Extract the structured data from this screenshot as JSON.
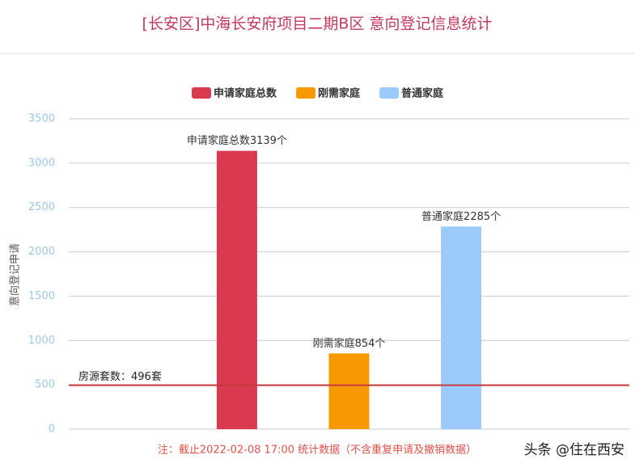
{
  "chart_data": {
    "type": "bar",
    "title": "[长安区]中海长安府项目二期B区 意向登记信息统计",
    "y_label": "意向登记申请",
    "categories": [
      null
    ],
    "series": [
      {
        "name": "申请家庭总数",
        "color": "#d93a50",
        "values": [
          3139
        ],
        "value_labels": [
          "申请家庭总数3139个"
        ]
      },
      {
        "name": "刚需家庭",
        "color": "#f59a00",
        "values": [
          854
        ],
        "value_labels": [
          "刚需家庭854个"
        ]
      },
      {
        "name": "普通家庭",
        "color": "#9ccbfb",
        "values": [
          2285
        ],
        "value_labels": [
          "普通家庭2285个"
        ]
      }
    ],
    "ylim": [
      0,
      3500
    ],
    "yticks": [
      0,
      500,
      1000,
      1500,
      2000,
      2500,
      3000,
      3500
    ],
    "grid": true,
    "legend": "top",
    "reference_line": {
      "value": 496,
      "label": "房源套数：496套",
      "color": "#c8383c"
    },
    "footnote": "注：截止2022-02-08 17:00 统计数据（不含重复申请及撤销数据）",
    "watermark": "头条 @住在西安"
  }
}
